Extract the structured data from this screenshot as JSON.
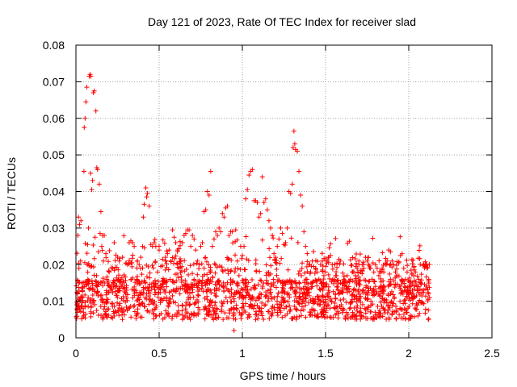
{
  "chart_data": {
    "type": "scatter",
    "title": "Day 121 of 2023, Rate Of TEC Index for receiver slad",
    "xlabel": "GPS time / hours",
    "ylabel": "ROTI / TECUs",
    "xlim": [
      0,
      2.5
    ],
    "ylim": [
      0,
      0.08
    ],
    "xticks": [
      0,
      0.5,
      1,
      1.5,
      2,
      2.5
    ],
    "xtick_labels": [
      "0",
      "0.5",
      "1",
      "1.5",
      "2",
      "2.5"
    ],
    "yticks": [
      0,
      0.01,
      0.02,
      0.03,
      0.04,
      0.05,
      0.06,
      0.07,
      0.08
    ],
    "ytick_labels": [
      "0",
      "0.01",
      "0.02",
      "0.03",
      "0.04",
      "0.05",
      "0.06",
      "0.07",
      "0.08"
    ],
    "grid": true,
    "grid_style": "dotted",
    "marker": "+",
    "color": "#ff0000",
    "series": [
      {
        "points": [
          [
            0.005,
            0.009
          ],
          [
            0.01,
            0.012
          ],
          [
            0.012,
            0.028
          ],
          [
            0.015,
            0.033
          ],
          [
            0.018,
            0.019
          ],
          [
            0.022,
            0.031
          ],
          [
            0.028,
            0.021
          ],
          [
            0.03,
            0.032
          ],
          [
            0.035,
            0.015
          ],
          [
            0.04,
            0.011
          ],
          [
            0.045,
            0.007
          ],
          [
            0.048,
            0.0455
          ],
          [
            0.05,
            0.0575
          ],
          [
            0.055,
            0.06
          ],
          [
            0.06,
            0.0645
          ],
          [
            0.065,
            0.0685
          ],
          [
            0.07,
            0.0255
          ],
          [
            0.075,
            0.03
          ],
          [
            0.08,
            0.0715
          ],
          [
            0.085,
            0.072
          ],
          [
            0.088,
            0.045
          ],
          [
            0.09,
            0.0715
          ],
          [
            0.095,
            0.0405
          ],
          [
            0.1,
            0.043
          ],
          [
            0.105,
            0.067
          ],
          [
            0.11,
            0.0675
          ],
          [
            0.115,
            0.0275
          ],
          [
            0.12,
            0.062
          ],
          [
            0.125,
            0.0465
          ],
          [
            0.13,
            0.046
          ],
          [
            0.135,
            0.0235
          ],
          [
            0.14,
            0.042
          ],
          [
            0.145,
            0.0285
          ],
          [
            0.15,
            0.0345
          ],
          [
            0.155,
            0.025
          ],
          [
            0.16,
            0.028
          ],
          [
            0.165,
            0.021
          ],
          [
            0.17,
            0.028
          ],
          [
            0.18,
            0.023
          ],
          [
            0.19,
            0.015
          ],
          [
            0.2,
            0.018
          ],
          [
            0.21,
            0.013
          ],
          [
            0.22,
            0.019
          ],
          [
            0.23,
            0.026
          ],
          [
            0.24,
            0.014
          ],
          [
            0.25,
            0.022
          ],
          [
            0.26,
            0.021
          ],
          [
            0.27,
            0.016
          ],
          [
            0.28,
            0.022
          ],
          [
            0.3,
            0.012
          ],
          [
            0.31,
            0.02
          ],
          [
            0.32,
            0.026
          ],
          [
            0.33,
            0.0265
          ],
          [
            0.34,
            0.026
          ],
          [
            0.35,
            0.025
          ],
          [
            0.36,
            0.013
          ],
          [
            0.37,
            0.021
          ],
          [
            0.38,
            0.02
          ],
          [
            0.39,
            0.022
          ],
          [
            0.4,
            0.025
          ],
          [
            0.405,
            0.033
          ],
          [
            0.41,
            0.0365
          ],
          [
            0.42,
            0.041
          ],
          [
            0.425,
            0.0385
          ],
          [
            0.43,
            0.0395
          ],
          [
            0.44,
            0.036
          ],
          [
            0.45,
            0.0255
          ],
          [
            0.46,
            0.025
          ],
          [
            0.47,
            0.026
          ],
          [
            0.48,
            0.025
          ],
          [
            0.49,
            0.018
          ],
          [
            0.5,
            0.024
          ],
          [
            0.51,
            0.0195
          ],
          [
            0.52,
            0.0215
          ],
          [
            0.54,
            0.021
          ],
          [
            0.55,
            0.023
          ],
          [
            0.56,
            0.024
          ],
          [
            0.57,
            0.021
          ],
          [
            0.58,
            0.0295
          ],
          [
            0.59,
            0.0275
          ],
          [
            0.6,
            0.026
          ],
          [
            0.61,
            0.024
          ],
          [
            0.62,
            0.019
          ],
          [
            0.63,
            0.021
          ],
          [
            0.64,
            0.026
          ],
          [
            0.65,
            0.028
          ],
          [
            0.66,
            0.0285
          ],
          [
            0.67,
            0.0295
          ],
          [
            0.68,
            0.0295
          ],
          [
            0.69,
            0.025
          ],
          [
            0.7,
            0.028
          ],
          [
            0.71,
            0.027
          ],
          [
            0.72,
            0.024
          ],
          [
            0.73,
            0.021
          ],
          [
            0.74,
            0.02
          ],
          [
            0.75,
            0.025
          ],
          [
            0.76,
            0.026
          ],
          [
            0.77,
            0.0345
          ],
          [
            0.78,
            0.035
          ],
          [
            0.79,
            0.04
          ],
          [
            0.8,
            0.039
          ],
          [
            0.81,
            0.0455
          ],
          [
            0.82,
            0.025
          ],
          [
            0.83,
            0.027
          ],
          [
            0.84,
            0.029
          ],
          [
            0.85,
            0.028
          ],
          [
            0.86,
            0.03
          ],
          [
            0.87,
            0.029
          ],
          [
            0.88,
            0.034
          ],
          [
            0.89,
            0.033
          ],
          [
            0.9,
            0.0355
          ],
          [
            0.91,
            0.036
          ],
          [
            0.92,
            0.028
          ],
          [
            0.93,
            0.029
          ],
          [
            0.94,
            0.029
          ],
          [
            0.95,
            0.002
          ],
          [
            0.96,
            0.0295
          ],
          [
            0.97,
            0.021
          ],
          [
            0.98,
            0.017
          ],
          [
            0.99,
            0.025
          ],
          [
            1.0,
            0.0225
          ],
          [
            1.01,
            0.025
          ],
          [
            1.02,
            0.038
          ],
          [
            1.03,
            0.0405
          ],
          [
            1.04,
            0.0445
          ],
          [
            1.05,
            0.0455
          ],
          [
            1.06,
            0.046
          ],
          [
            1.07,
            0.0375
          ],
          [
            1.08,
            0.0375
          ],
          [
            1.09,
            0.037
          ],
          [
            1.1,
            0.033
          ],
          [
            1.11,
            0.034
          ],
          [
            1.12,
            0.044
          ],
          [
            1.13,
            0.037
          ],
          [
            1.14,
            0.038
          ],
          [
            1.15,
            0.035
          ],
          [
            1.16,
            0.032
          ],
          [
            1.17,
            0.03
          ],
          [
            1.18,
            0.028
          ],
          [
            1.19,
            0.023
          ],
          [
            1.2,
            0.022
          ],
          [
            1.21,
            0.025
          ],
          [
            1.22,
            0.027
          ],
          [
            1.23,
            0.03
          ],
          [
            1.24,
            0.0285
          ],
          [
            1.25,
            0.0255
          ],
          [
            1.26,
            0.026
          ],
          [
            1.27,
            0.03
          ],
          [
            1.28,
            0.04
          ],
          [
            1.29,
            0.0395
          ],
          [
            1.3,
            0.042
          ],
          [
            1.305,
            0.052
          ],
          [
            1.31,
            0.0565
          ],
          [
            1.315,
            0.053
          ],
          [
            1.32,
            0.0515
          ],
          [
            1.33,
            0.051
          ],
          [
            1.34,
            0.0455
          ],
          [
            1.35,
            0.039
          ],
          [
            1.36,
            0.036
          ],
          [
            1.37,
            0.029
          ],
          [
            1.38,
            0.025
          ],
          [
            1.39,
            0.023
          ],
          [
            1.4,
            0.02
          ],
          [
            1.41,
            0.018
          ],
          [
            1.42,
            0.021
          ],
          [
            1.43,
            0.0195
          ],
          [
            1.44,
            0.019
          ],
          [
            1.45,
            0.018
          ],
          [
            1.46,
            0.016
          ],
          [
            1.47,
            0.02
          ],
          [
            1.48,
            0.021
          ],
          [
            1.49,
            0.017
          ],
          [
            1.5,
            0.018
          ],
          [
            1.51,
            0.021
          ],
          [
            1.52,
            0.022
          ],
          [
            1.53,
            0.0225
          ],
          [
            1.54,
            0.02
          ],
          [
            1.55,
            0.016
          ],
          [
            1.56,
            0.017
          ],
          [
            1.57,
            0.014
          ],
          [
            1.58,
            0.012
          ],
          [
            1.59,
            0.015
          ],
          [
            1.6,
            0.013
          ],
          [
            1.61,
            0.016
          ],
          [
            1.62,
            0.015
          ],
          [
            1.63,
            0.017
          ],
          [
            1.64,
            0.014
          ],
          [
            1.65,
            0.016
          ],
          [
            1.66,
            0.018
          ],
          [
            1.67,
            0.018
          ],
          [
            1.68,
            0.017
          ],
          [
            1.69,
            0.019
          ],
          [
            1.7,
            0.021
          ],
          [
            1.71,
            0.018
          ],
          [
            1.72,
            0.02
          ],
          [
            1.73,
            0.019
          ],
          [
            1.74,
            0.022
          ],
          [
            1.75,
            0.021
          ],
          [
            1.76,
            0.02
          ],
          [
            1.77,
            0.019
          ],
          [
            1.78,
            0.016
          ],
          [
            1.79,
            0.018
          ],
          [
            1.8,
            0.02
          ],
          [
            1.81,
            0.019
          ],
          [
            1.82,
            0.017
          ],
          [
            1.83,
            0.018
          ],
          [
            1.84,
            0.019
          ],
          [
            1.85,
            0.018
          ],
          [
            1.86,
            0.02
          ],
          [
            1.87,
            0.021
          ],
          [
            1.88,
            0.024
          ],
          [
            1.89,
            0.0235
          ],
          [
            1.9,
            0.021
          ],
          [
            1.91,
            0.02
          ],
          [
            1.92,
            0.018
          ],
          [
            1.93,
            0.017
          ],
          [
            1.94,
            0.0205
          ],
          [
            1.95,
            0.0225
          ],
          [
            1.96,
            0.023
          ],
          [
            1.97,
            0.019
          ],
          [
            1.98,
            0.016
          ],
          [
            1.99,
            0.018
          ],
          [
            2.0,
            0.014
          ],
          [
            2.01,
            0.013
          ],
          [
            2.02,
            0.012
          ],
          [
            2.03,
            0.017
          ],
          [
            2.04,
            0.018
          ],
          [
            2.05,
            0.014
          ],
          [
            2.06,
            0.016
          ],
          [
            2.07,
            0.015
          ],
          [
            2.08,
            0.013
          ],
          [
            2.09,
            0.02
          ],
          [
            2.1,
            0.0195
          ],
          [
            2.11,
            0.019
          ],
          [
            2.12,
            0.012
          ],
          [
            2.125,
            0.011
          ]
        ]
      }
    ]
  }
}
